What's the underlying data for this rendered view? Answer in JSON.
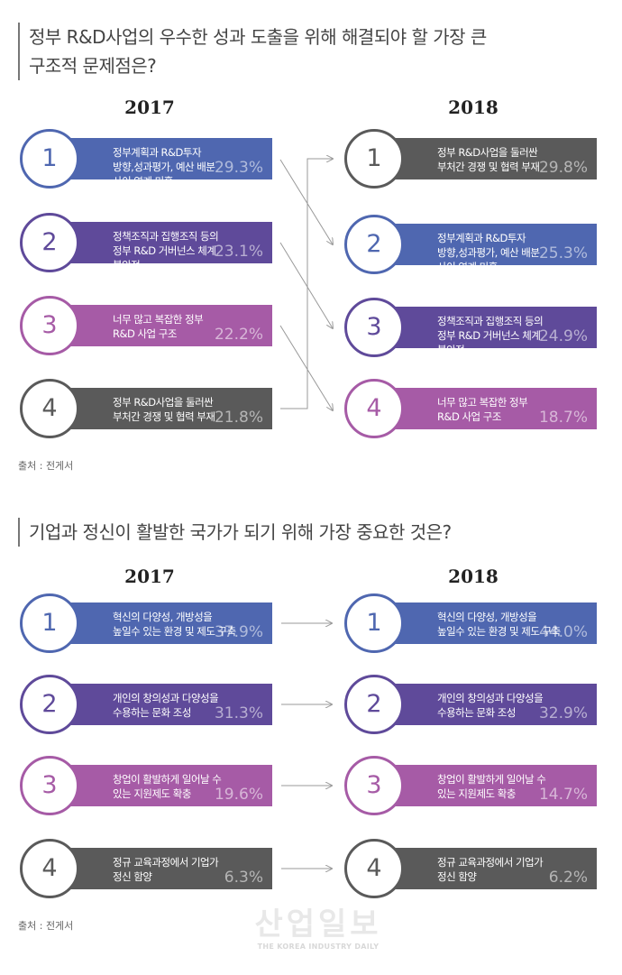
{
  "sections": [
    {
      "title": "정부 R&D사업의 우수한 성과 도출을 위해 해결되야 할 가장 큰\n구조적 문제점은?",
      "year_left": "2017",
      "year_right": "2018",
      "left": [
        {
          "rank": "1",
          "text": "정부계획과 R&D투자\n방향,성과평가, 예산 배분\n사이 연계 미흡",
          "value": "29.3%",
          "color": "#4f67b0"
        },
        {
          "rank": "2",
          "text": "정책조직과 집행조직 등의\n정부 R&D 거버넌스 체계\n불안정",
          "value": "23.1%",
          "color": "#5f4a9a"
        },
        {
          "rank": "3",
          "text": "너무 많고 복잡한 정부\nR&D 사업 구조",
          "value": "22.2%",
          "color": "#a65ba6"
        },
        {
          "rank": "4",
          "text": "정부 R&D사업을 둘러싼\n부처간 경쟁 및 협력 부재",
          "value": "21.8%",
          "color": "#5a5a5a"
        }
      ],
      "right": [
        {
          "rank": "1",
          "text": "정부 R&D사업을 둘러싼\n부처간 경쟁 및 협력 부재",
          "value": "29.8%",
          "color": "#5a5a5a"
        },
        {
          "rank": "2",
          "text": "정부계획과 R&D투자\n방향,성과평가, 예산 배분\n사이 연계 미흡",
          "value": "25.3%",
          "color": "#4f67b0"
        },
        {
          "rank": "3",
          "text": "정책조직과 집행조직 등의\n정부 R&D 거버넌스 체계\n불안정",
          "value": "24.9%",
          "color": "#5f4a9a"
        },
        {
          "rank": "4",
          "text": "너무 많고 복잡한 정부\nR&D 사업 구조",
          "value": "18.7%",
          "color": "#a65ba6"
        }
      ],
      "source": "출처 : 전게서"
    },
    {
      "title": "기업과 정신이 활발한 국가가 되기 위해 가장 중요한 것은?",
      "year_left": "2017",
      "year_right": "2018",
      "left": [
        {
          "rank": "1",
          "text": "혁신의 다양성, 개방성을\n높일수 있는 환경 및 제도 구축",
          "value": "37.9%",
          "color": "#4f67b0"
        },
        {
          "rank": "2",
          "text": "개인의 창의성과 다양성을\n수용하는 문화 조성",
          "value": "31.3%",
          "color": "#5f4a9a"
        },
        {
          "rank": "3",
          "text": "창업이 활발하게 일어날 수\n있는 지원제도 확충",
          "value": "19.6%",
          "color": "#a65ba6"
        },
        {
          "rank": "4",
          "text": "정규 교육과정에서 기업가\n정신 함양",
          "value": "6.3%",
          "color": "#5a5a5a"
        }
      ],
      "right": [
        {
          "rank": "1",
          "text": "혁신의 다양성, 개방성을\n높일수 있는 환경 및 제도 구축",
          "value": "44.0%",
          "color": "#4f67b0"
        },
        {
          "rank": "2",
          "text": "개인의 창의성과 다양성을\n수용하는 문화 조성",
          "value": "32.9%",
          "color": "#5f4a9a"
        },
        {
          "rank": "3",
          "text": "창업이 활발하게 일어날 수\n있는 지원제도 확충",
          "value": "14.7%",
          "color": "#a65ba6"
        },
        {
          "rank": "4",
          "text": "정규 교육과정에서 기업가\n정신 함양",
          "value": "6.2%",
          "color": "#5a5a5a"
        }
      ],
      "source": "출처 : 전게서"
    }
  ],
  "watermark": {
    "main": "산업일보",
    "sub": "THE KOREA INDUSTRY DAILY"
  }
}
